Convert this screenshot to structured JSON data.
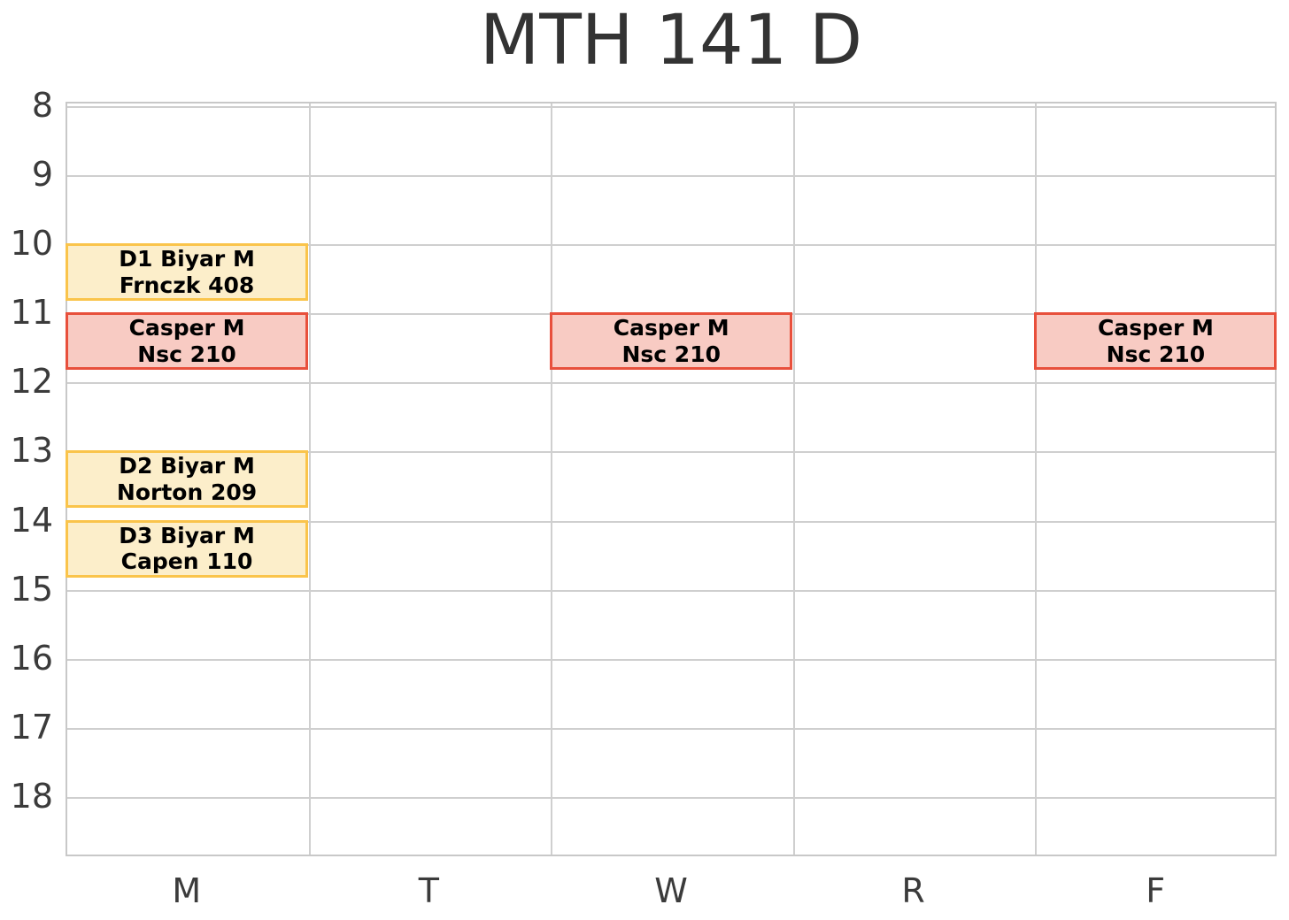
{
  "title": "MTH 141 D",
  "y_axis": {
    "tick_labels": [
      "8",
      "9",
      "10",
      "11",
      "12",
      "13",
      "14",
      "15",
      "16",
      "17",
      "18"
    ]
  },
  "x_axis": {
    "tick_labels": [
      "M",
      "T",
      "W",
      "R",
      "F"
    ]
  },
  "colors": {
    "background": "#FFFFFF",
    "title_text": "#333333",
    "tick_text": "#3B3B3B",
    "grid_line": "#CFCFCF",
    "plot_border": "#C8C8C8",
    "event_text": "#000000"
  },
  "chart_data": {
    "type": "schedule",
    "title": "MTH 141 D",
    "x_categories": [
      "M",
      "T",
      "W",
      "R",
      "F"
    ],
    "y_axis": {
      "unit": "hour of day",
      "ticks": [
        8,
        9,
        10,
        11,
        12,
        13,
        14,
        15,
        16,
        17,
        18
      ],
      "range_top": 7.95,
      "range_bottom": 18.87,
      "direction": "top-to-bottom"
    },
    "grid": true,
    "legend": false,
    "events": [
      {
        "day": "M",
        "start": 10.0,
        "end": 10.8333,
        "line1": "D1 Biyar M",
        "line2": "Frnczk 408",
        "style": "section"
      },
      {
        "day": "M",
        "start": 11.0,
        "end": 11.8333,
        "line1": "Casper M",
        "line2": "Nsc 210",
        "style": "lecture"
      },
      {
        "day": "W",
        "start": 11.0,
        "end": 11.8333,
        "line1": "Casper M",
        "line2": "Nsc 210",
        "style": "lecture"
      },
      {
        "day": "F",
        "start": 11.0,
        "end": 11.8333,
        "line1": "Casper M",
        "line2": "Nsc 210",
        "style": "lecture"
      },
      {
        "day": "M",
        "start": 13.0,
        "end": 13.8333,
        "line1": "D2 Biyar M",
        "line2": "Norton 209",
        "style": "section"
      },
      {
        "day": "M",
        "start": 14.0,
        "end": 14.8333,
        "line1": "D3 Biyar M",
        "line2": "Capen 110",
        "style": "section"
      }
    ],
    "styles": {
      "section": {
        "fill": "#FCEECA",
        "border": "#FAC44B"
      },
      "lecture": {
        "fill": "#F8CBC3",
        "border": "#E8503C"
      }
    }
  }
}
